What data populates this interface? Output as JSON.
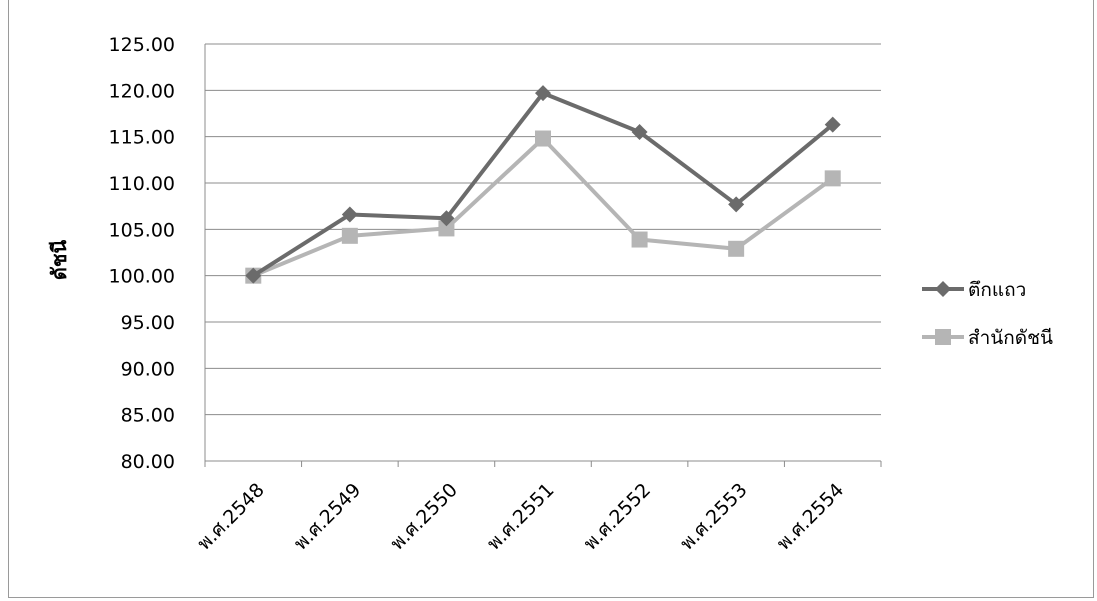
{
  "chart_data": {
    "type": "line",
    "title": "",
    "xlabel": "",
    "ylabel": "ดัชนี",
    "categories": [
      "พ.ศ.2548",
      "พ.ศ.2549",
      "พ.ศ.2550",
      "พ.ศ.2551",
      "พ.ศ.2552",
      "พ.ศ.2553",
      "พ.ศ.2554"
    ],
    "ylim": [
      80,
      125
    ],
    "yticks": [
      "80.00",
      "85.00",
      "90.00",
      "95.00",
      "100.00",
      "105.00",
      "110.00",
      "115.00",
      "120.00",
      "125.00"
    ],
    "grid": true,
    "legend_position": "right",
    "series": [
      {
        "name": "ตึกแถว",
        "values": [
          100.0,
          106.6,
          106.2,
          119.7,
          115.5,
          107.7,
          116.3
        ],
        "marker": "diamond",
        "color": "#6b6b6b"
      },
      {
        "name": "สำนักดัชนี",
        "values": [
          100.0,
          104.3,
          105.1,
          114.8,
          103.9,
          102.9,
          110.5
        ],
        "marker": "square",
        "color": "#b5b5b5"
      }
    ]
  }
}
